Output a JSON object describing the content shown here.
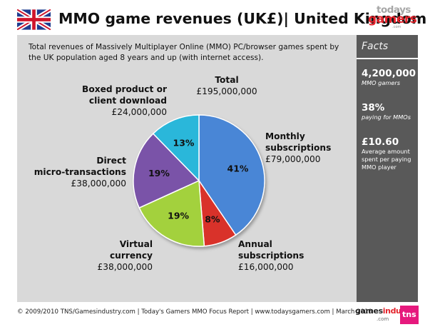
{
  "header": {
    "title": "MMO game revenues (UK£)| United Kingdom",
    "logo_line1": "todays",
    "logo_line2": "gamers",
    "logo_line3": ".com"
  },
  "description": "Total revenues of Massively Multiplayer Online (MMO) PC/browser games spent by the UK population aged 8 years and up (with internet access).",
  "chart_data": {
    "type": "pie",
    "title": "",
    "total_label": "Total",
    "total_value": "£195,000,000",
    "slices": [
      {
        "label_line1": "Monthly",
        "label_line2": "subscriptions",
        "value": 79000000,
        "value_text": "£79,000,000",
        "percent": 41,
        "percent_text": "41%",
        "color": "#4a86d6"
      },
      {
        "label_line1": "Annual",
        "label_line2": "subscriptions",
        "value": 16000000,
        "value_text": "£16,000,000",
        "percent": 8,
        "percent_text": "8%",
        "color": "#d9302c"
      },
      {
        "label_line1": "Virtual",
        "label_line2": "currency",
        "value": 38000000,
        "value_text": "£38,000,000",
        "percent": 19,
        "percent_text": "19%",
        "color": "#a3d13c"
      },
      {
        "label_line1": "Direct",
        "label_line2": "micro-transactions",
        "value": 38000000,
        "value_text": "£38,000,000",
        "percent": 19,
        "percent_text": "19%",
        "color": "#7a52a8"
      },
      {
        "label_line1": "Boxed product or",
        "label_line2": "client download",
        "value": 24000000,
        "value_text": "£24,000,000",
        "percent": 13,
        "percent_text": "13%",
        "color": "#2bb7da"
      }
    ]
  },
  "facts": {
    "title": "Facts",
    "items": [
      {
        "number": "4,200,000",
        "caption": "MMO gamers"
      },
      {
        "number": "38%",
        "caption": "paying for MMOs"
      },
      {
        "number": "£10.60",
        "caption": "Average amount spent per paying MMO player"
      }
    ]
  },
  "footer": {
    "text": "© 2009/2010 TNS/Gamesindustry.com | Today's Gamers MMO Focus Report | www.todaysgamers.com | March 2010",
    "gi_logo_a": "games",
    "gi_logo_b": "industry",
    "gi_logo_c": ".com",
    "tns_logo": "tns"
  },
  "colors": {
    "panel": "#d9d9d9",
    "facts_panel": "#595959",
    "brand_red": "#e3232b",
    "tns_pink": "#e6197d"
  }
}
